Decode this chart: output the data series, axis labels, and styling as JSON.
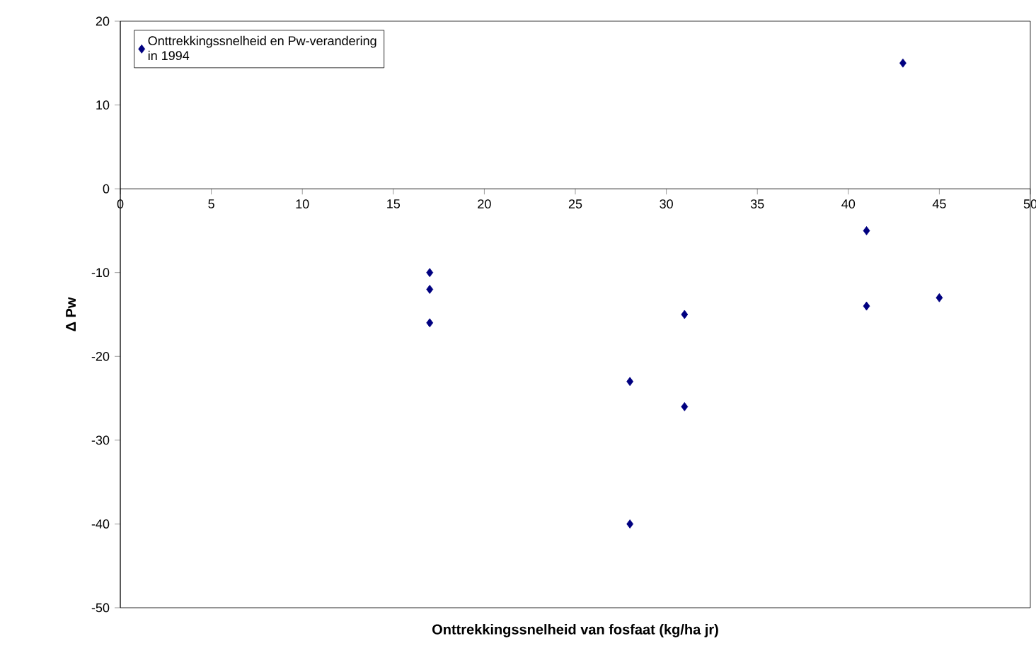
{
  "chart_data": {
    "type": "scatter",
    "xlabel": "Onttrekkingssnelheid van fosfaat (kg/ha jr)",
    "ylabel": "Δ Pw",
    "xlim": [
      0,
      50
    ],
    "ylim": [
      -50,
      20
    ],
    "xticks": [
      0,
      5,
      10,
      15,
      20,
      25,
      30,
      35,
      40,
      45,
      50
    ],
    "yticks": [
      -50,
      -40,
      -30,
      -20,
      -10,
      0,
      10,
      20
    ],
    "marker": "diamond",
    "legend": "top left",
    "series": [
      {
        "name": "Onttrekkingssnelheid en Pw-verandering in 1994",
        "color": "#000080",
        "x": [
          17,
          17,
          17,
          28,
          28,
          31,
          31,
          41,
          41,
          43,
          45
        ],
        "values": [
          -10,
          -12,
          -16,
          -23,
          -40,
          -15,
          -26,
          -5,
          -14,
          15,
          -13
        ]
      }
    ]
  }
}
